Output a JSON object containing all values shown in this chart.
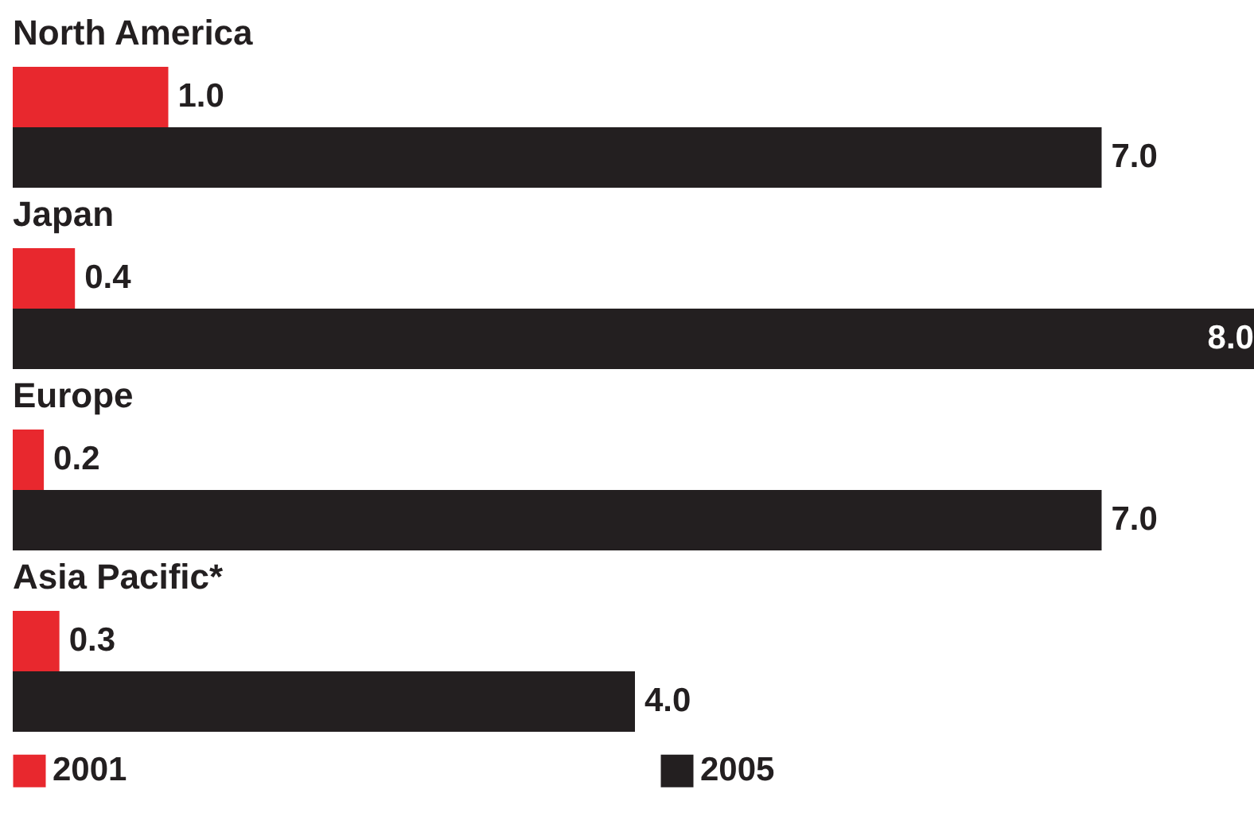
{
  "chart_data": {
    "type": "bar",
    "orientation": "horizontal",
    "categories": [
      "North America",
      "Japan",
      "Europe",
      "Asia Pacific*"
    ],
    "xlim": [
      0,
      8
    ],
    "legend": "bottom",
    "series": [
      {
        "name": "2001",
        "color": "#e8282e",
        "values": [
          1.0,
          0.4,
          0.2,
          0.3
        ],
        "value_labels": [
          "1.0",
          "0.4",
          "0.2",
          "0.3"
        ]
      },
      {
        "name": "2005",
        "color": "#231f20",
        "values": [
          7.0,
          8.0,
          7.0,
          4.0
        ],
        "value_labels": [
          "7.0",
          "8.0",
          "7.0",
          "4.0"
        ]
      }
    ]
  }
}
